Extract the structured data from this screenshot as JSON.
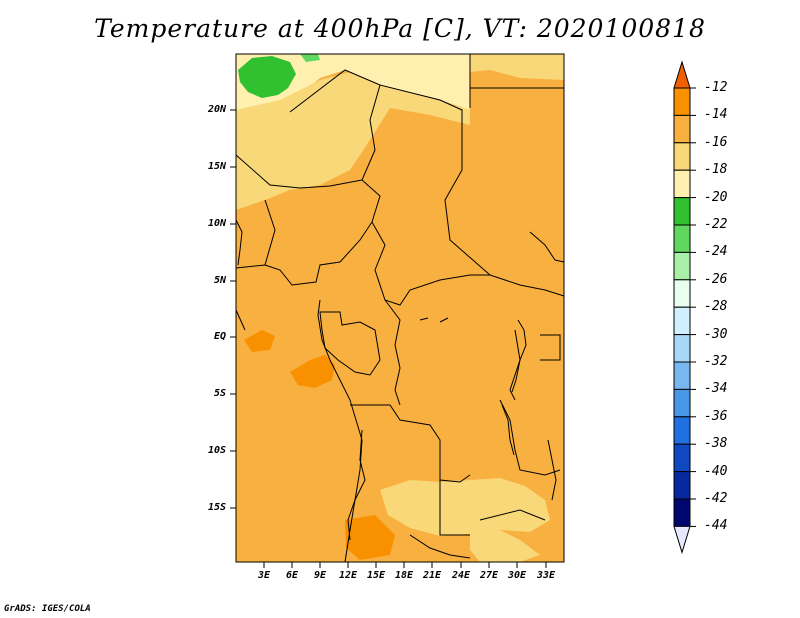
{
  "title": "Temperature at 400hPa [C], VT: 2020100818",
  "credit": "GrADS: IGES/COLA",
  "lat_labels": [
    "20N",
    "15N",
    "10N",
    "5N",
    "EQ",
    "5S",
    "10S",
    "15S"
  ],
  "lon_labels": [
    "3E",
    "6E",
    "9E",
    "12E",
    "15E",
    "18E",
    "21E",
    "24E",
    "27E",
    "30E",
    "33E"
  ],
  "colorbar": {
    "labels": [
      "-12",
      "-14",
      "-16",
      "-18",
      "-20",
      "-22",
      "-24",
      "-26",
      "-28",
      "-30",
      "-32",
      "-34",
      "-36",
      "-38",
      "-40",
      "-42",
      "-44"
    ],
    "colors": [
      "#f06000",
      "#f89000",
      "#f8b040",
      "#f8d878",
      "#fff0b0",
      "#30c030",
      "#60d860",
      "#a8f0a8",
      "#e8fff0",
      "#d0f0ff",
      "#a8d8f8",
      "#78b8f0",
      "#4898e8",
      "#2070e0",
      "#1048c0",
      "#0828a0",
      "#000870",
      "#e8e8ff"
    ]
  },
  "colors": {
    "land_dominant": "#f8b040",
    "warm_patch": "#f89000",
    "cool_patch": "#f8d878",
    "north_band": "#fff0b0",
    "green_patch": "#30c030"
  }
}
